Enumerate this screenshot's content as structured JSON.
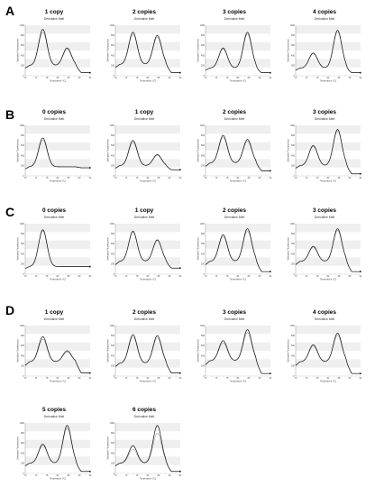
{
  "panels": [
    {
      "letter": "A"
    },
    {
      "letter": "B"
    },
    {
      "letter": "C"
    },
    {
      "letter": "D"
    }
  ],
  "colors": {
    "curve_dark": "#111111",
    "curve_light": "#9a9a9a",
    "band": "#efefef"
  },
  "chart_data": [
    {
      "panel": "A",
      "type": "line",
      "title": "1 copy",
      "subtitle": "Derivative Melt",
      "xlabel": "Temperature (°C)",
      "ylabel": "Derivative Fluorescence",
      "x": [
        70,
        74,
        78,
        82,
        86,
        90,
        94
      ],
      "peaks": [
        {
          "x": 76.5,
          "h": 0.92
        },
        {
          "x": 85.5,
          "h": 0.55
        }
      ],
      "baseline": 0.2,
      "tail": 0.06,
      "offset_ratio": 0.92,
      "yticks": [
        "0",
        "200",
        "400",
        "600",
        "800",
        "1000"
      ]
    },
    {
      "panel": "A",
      "type": "line",
      "title": "2 copies",
      "subtitle": "Derivative Melt",
      "xlabel": "Temperature (°C)",
      "ylabel": "Derivative Fluorescence",
      "x": [
        70,
        74,
        78,
        82,
        86,
        90,
        94
      ],
      "peaks": [
        {
          "x": 76.5,
          "h": 0.86
        },
        {
          "x": 85.5,
          "h": 0.8
        }
      ],
      "baseline": 0.22,
      "tail": 0.06,
      "offset_ratio": 0.94,
      "yticks": [
        "0",
        "200",
        "400",
        "600",
        "800",
        "1000"
      ]
    },
    {
      "panel": "A",
      "type": "line",
      "title": "3 copies",
      "subtitle": "Derivative Melt",
      "xlabel": "Temperature (°C)",
      "ylabel": "Derivative Fluorescence",
      "x": [
        70,
        74,
        78,
        82,
        86,
        90,
        94
      ],
      "peaks": [
        {
          "x": 76.5,
          "h": 0.55
        },
        {
          "x": 85.5,
          "h": 0.86
        }
      ],
      "baseline": 0.15,
      "tail": 0.06,
      "offset_ratio": 0.95,
      "yticks": [
        "0",
        "200",
        "400",
        "600",
        "800",
        "1000"
      ]
    },
    {
      "panel": "A",
      "type": "line",
      "title": "4 copies",
      "subtitle": "Derivative Melt",
      "xlabel": "Temperature (°C)",
      "ylabel": "Derivative Fluorescence",
      "x": [
        70,
        74,
        78,
        82,
        86,
        90,
        94
      ],
      "peaks": [
        {
          "x": 76.5,
          "h": 0.45
        },
        {
          "x": 85.5,
          "h": 0.9
        }
      ],
      "baseline": 0.15,
      "tail": 0.06,
      "offset_ratio": 0.96,
      "yticks": [
        "0",
        "200",
        "400",
        "600",
        "800",
        "1000"
      ]
    },
    {
      "panel": "B",
      "type": "line",
      "title": "0 copies",
      "subtitle": "Derivative Melt",
      "xlabel": "Temperature (°C)",
      "ylabel": "Derivative Fluorescence",
      "x": [
        70,
        74,
        78,
        82,
        86,
        90,
        94
      ],
      "peaks": [
        {
          "x": 76.5,
          "h": 0.75
        }
      ],
      "baseline": 0.18,
      "tail": 0.16,
      "offset_ratio": 0.93,
      "yticks": [
        "0",
        "200",
        "400",
        "600",
        "800",
        "1000"
      ]
    },
    {
      "panel": "B",
      "type": "line",
      "title": "1 copy",
      "subtitle": "Derivative Melt",
      "xlabel": "Temperature (°C)",
      "ylabel": "Derivative Fluorescence",
      "x": [
        70,
        74,
        78,
        82,
        86,
        90,
        94
      ],
      "peaks": [
        {
          "x": 76.5,
          "h": 0.7
        },
        {
          "x": 85.5,
          "h": 0.42
        }
      ],
      "baseline": 0.2,
      "tail": 0.12,
      "offset_ratio": 0.93,
      "yticks": [
        "0",
        "200",
        "400",
        "600",
        "800",
        "1000"
      ]
    },
    {
      "panel": "B",
      "type": "line",
      "title": "2 copies",
      "subtitle": "Derivative Melt",
      "xlabel": "Temperature (°C)",
      "ylabel": "Derivative Fluorescence",
      "x": [
        70,
        74,
        78,
        82,
        86,
        90,
        94
      ],
      "peaks": [
        {
          "x": 76.5,
          "h": 0.8
        },
        {
          "x": 85.5,
          "h": 0.72
        }
      ],
      "baseline": 0.25,
      "tail": 0.1,
      "offset_ratio": 0.93,
      "yticks": [
        "0",
        "200",
        "400",
        "600",
        "800",
        "1000"
      ]
    },
    {
      "panel": "B",
      "type": "line",
      "title": "3 copies",
      "subtitle": "Derivative Melt",
      "xlabel": "Temperature (°C)",
      "ylabel": "Derivative Fluorescence",
      "x": [
        70,
        74,
        78,
        82,
        86,
        90,
        94
      ],
      "peaks": [
        {
          "x": 76.5,
          "h": 0.6
        },
        {
          "x": 85.5,
          "h": 0.92
        }
      ],
      "baseline": 0.2,
      "tail": 0.04,
      "offset_ratio": 0.96,
      "yticks": [
        "0",
        "200",
        "400",
        "600",
        "800",
        "1000"
      ]
    },
    {
      "panel": "C",
      "type": "line",
      "title": "0 copies",
      "subtitle": "Derivative Melt",
      "xlabel": "Temperature (°C)",
      "ylabel": "Derivative Fluorescence",
      "x": [
        70,
        74,
        78,
        82,
        86,
        90,
        94
      ],
      "peaks": [
        {
          "x": 76.5,
          "h": 0.88
        }
      ],
      "baseline": 0.15,
      "tail": 0.15,
      "offset_ratio": 0.97,
      "yticks": [
        "0",
        "200",
        "400",
        "600",
        "800",
        "1000"
      ]
    },
    {
      "panel": "C",
      "type": "line",
      "title": "1 copy",
      "subtitle": "Derivative Melt",
      "xlabel": "Temperature (°C)",
      "ylabel": "Derivative Fluorescence",
      "x": [
        70,
        74,
        78,
        82,
        86,
        90,
        94
      ],
      "peaks": [
        {
          "x": 76.5,
          "h": 0.85
        },
        {
          "x": 85.5,
          "h": 0.68
        }
      ],
      "baseline": 0.25,
      "tail": 0.12,
      "offset_ratio": 0.97,
      "yticks": [
        "0",
        "200",
        "400",
        "600",
        "800",
        "1000"
      ]
    },
    {
      "panel": "C",
      "type": "line",
      "title": "2 copies",
      "subtitle": "Derivative Melt",
      "xlabel": "Temperature (°C)",
      "ylabel": "Derivative Fluorescence",
      "x": [
        70,
        74,
        78,
        82,
        86,
        90,
        94
      ],
      "peaks": [
        {
          "x": 76.5,
          "h": 0.78
        },
        {
          "x": 85.5,
          "h": 0.9
        }
      ],
      "baseline": 0.25,
      "tail": 0.05,
      "offset_ratio": 0.93,
      "yticks": [
        "0",
        "200",
        "400",
        "600",
        "800",
        "1000"
      ]
    },
    {
      "panel": "C",
      "type": "line",
      "title": "3 copies",
      "subtitle": "Derivative Melt",
      "xlabel": "Temperature (°C)",
      "ylabel": "Derivative Fluorescence",
      "x": [
        70,
        74,
        78,
        82,
        86,
        90,
        94
      ],
      "peaks": [
        {
          "x": 76.5,
          "h": 0.55
        },
        {
          "x": 85.5,
          "h": 0.9
        }
      ],
      "baseline": 0.25,
      "tail": 0.05,
      "offset_ratio": 0.95,
      "yticks": [
        "0",
        "200",
        "400",
        "600",
        "800",
        "1000"
      ]
    },
    {
      "panel": "D",
      "type": "line",
      "title": "1 copy",
      "subtitle": "Derivative Melt",
      "xlabel": "Temperature (°C)",
      "ylabel": "Derivative Fluorescence",
      "x": [
        70,
        74,
        78,
        82,
        86,
        90,
        94
      ],
      "peaks": [
        {
          "x": 76.5,
          "h": 0.78
        },
        {
          "x": 85.5,
          "h": 0.5
        }
      ],
      "baseline": 0.28,
      "tail": 0.06,
      "offset_ratio": 0.9,
      "yticks": [
        "0",
        "200",
        "400",
        "600",
        "800",
        "1000"
      ]
    },
    {
      "panel": "D",
      "type": "line",
      "title": "2 copies",
      "subtitle": "Derivative Melt",
      "xlabel": "Temperature (°C)",
      "ylabel": "Derivative Fluorescence",
      "x": [
        70,
        74,
        78,
        82,
        86,
        90,
        94
      ],
      "peaks": [
        {
          "x": 76.5,
          "h": 0.82
        },
        {
          "x": 85.5,
          "h": 0.8
        }
      ],
      "baseline": 0.25,
      "tail": 0.06,
      "offset_ratio": 0.92,
      "yticks": [
        "0",
        "200",
        "400",
        "600",
        "800",
        "1000"
      ]
    },
    {
      "panel": "D",
      "type": "line",
      "title": "3 copies",
      "subtitle": "Derivative Melt",
      "xlabel": "Temperature (°C)",
      "ylabel": "Derivative Fluorescence",
      "x": [
        70,
        74,
        78,
        82,
        86,
        90,
        94
      ],
      "peaks": [
        {
          "x": 76.5,
          "h": 0.7
        },
        {
          "x": 85.5,
          "h": 0.92
        }
      ],
      "baseline": 0.3,
      "tail": 0.05,
      "offset_ratio": 0.9,
      "yticks": [
        "0",
        "200",
        "400",
        "600",
        "800",
        "1000"
      ]
    },
    {
      "panel": "D",
      "type": "line",
      "title": "4 copies",
      "subtitle": "Derivative Melt",
      "xlabel": "Temperature (°C)",
      "ylabel": "Derivative Fluorescence",
      "x": [
        70,
        74,
        78,
        82,
        86,
        90,
        94
      ],
      "peaks": [
        {
          "x": 76.5,
          "h": 0.62
        },
        {
          "x": 85.5,
          "h": 0.85
        }
      ],
      "baseline": 0.28,
      "tail": 0.05,
      "offset_ratio": 0.93,
      "yticks": [
        "0",
        "200",
        "400",
        "600",
        "800",
        "1000"
      ]
    },
    {
      "panel": "D",
      "type": "line",
      "title": "5 copies",
      "subtitle": "Derivative Melt",
      "xlabel": "Temperature (°C)",
      "ylabel": "Derivative Fluorescence",
      "x": [
        70,
        74,
        78,
        82,
        86,
        90,
        94
      ],
      "peaks": [
        {
          "x": 76.5,
          "h": 0.58
        },
        {
          "x": 85.5,
          "h": 0.95
        }
      ],
      "baseline": 0.2,
      "tail": 0.04,
      "offset_ratio": 0.93,
      "yticks": [
        "0",
        "200",
        "400",
        "600",
        "800",
        "1000"
      ]
    },
    {
      "panel": "D",
      "type": "line",
      "title": "6 copies",
      "subtitle": "Derivative Melt",
      "xlabel": "Temperature (°C)",
      "ylabel": "Derivative Fluorescence",
      "x": [
        70,
        74,
        78,
        82,
        86,
        90,
        94
      ],
      "peaks": [
        {
          "x": 76.5,
          "h": 0.55
        },
        {
          "x": 85.5,
          "h": 0.95
        }
      ],
      "baseline": 0.2,
      "tail": 0.04,
      "offset_ratio": 0.8,
      "yticks": [
        "0",
        "200",
        "400",
        "600",
        "800",
        "1000"
      ]
    }
  ]
}
